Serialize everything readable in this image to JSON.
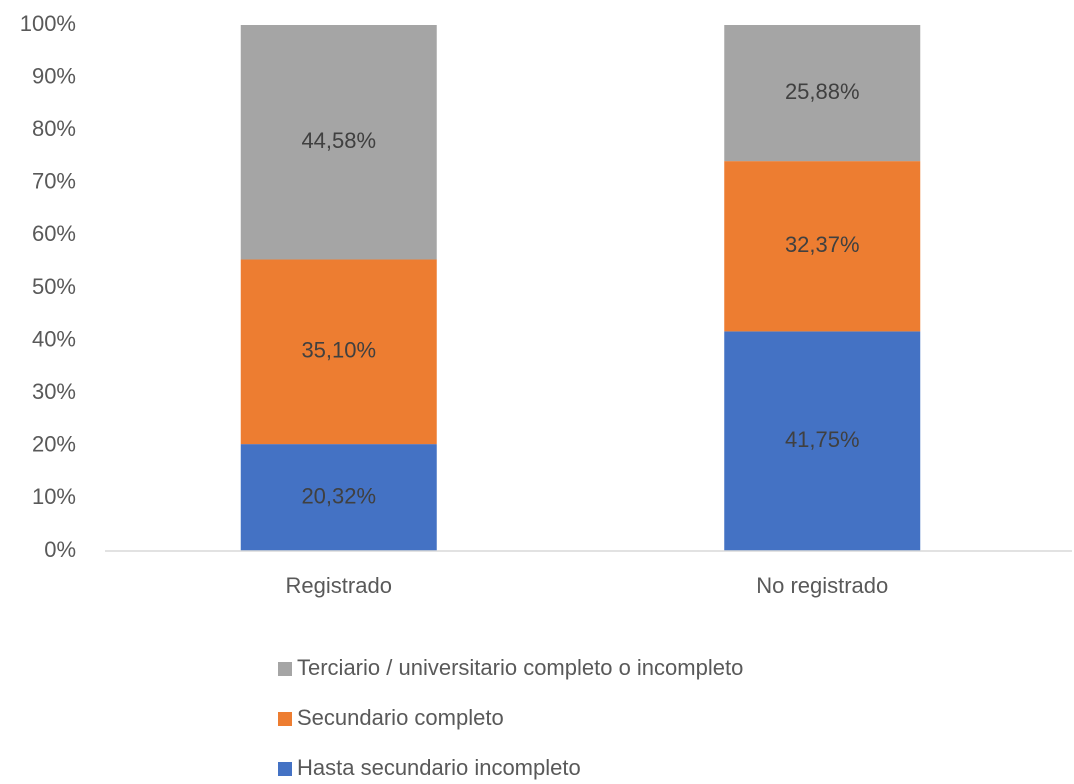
{
  "chart_data": {
    "type": "stacked_bar",
    "categories": [
      "Registrado",
      "No registrado"
    ],
    "series": [
      {
        "name": "Hasta secundario incompleto",
        "color": "#4472c4",
        "values": [
          20.32,
          41.75
        ],
        "value_labels": [
          "20,32%",
          "41,75%"
        ]
      },
      {
        "name": "Secundario completo",
        "color": "#ed7d31",
        "values": [
          35.1,
          32.37
        ],
        "value_labels": [
          "35,10%",
          "32,37%"
        ]
      },
      {
        "name": "Terciario / universitario completo o incompleto",
        "color": "#a5a5a5",
        "values": [
          44.58,
          25.88
        ],
        "value_labels": [
          "44,58%",
          "25,88%"
        ]
      }
    ],
    "ylim": [
      0,
      100
    ],
    "yticks": [
      {
        "value": 0,
        "label": "0%"
      },
      {
        "value": 10,
        "label": "10%"
      },
      {
        "value": 20,
        "label": "20%"
      },
      {
        "value": 30,
        "label": "30%"
      },
      {
        "value": 40,
        "label": "40%"
      },
      {
        "value": 50,
        "label": "50%"
      },
      {
        "value": 60,
        "label": "60%"
      },
      {
        "value": 70,
        "label": "70%"
      },
      {
        "value": 80,
        "label": "80%"
      },
      {
        "value": 90,
        "label": "90%"
      },
      {
        "value": 100,
        "label": "100%"
      }
    ],
    "grid": false,
    "legend": "bottom"
  }
}
